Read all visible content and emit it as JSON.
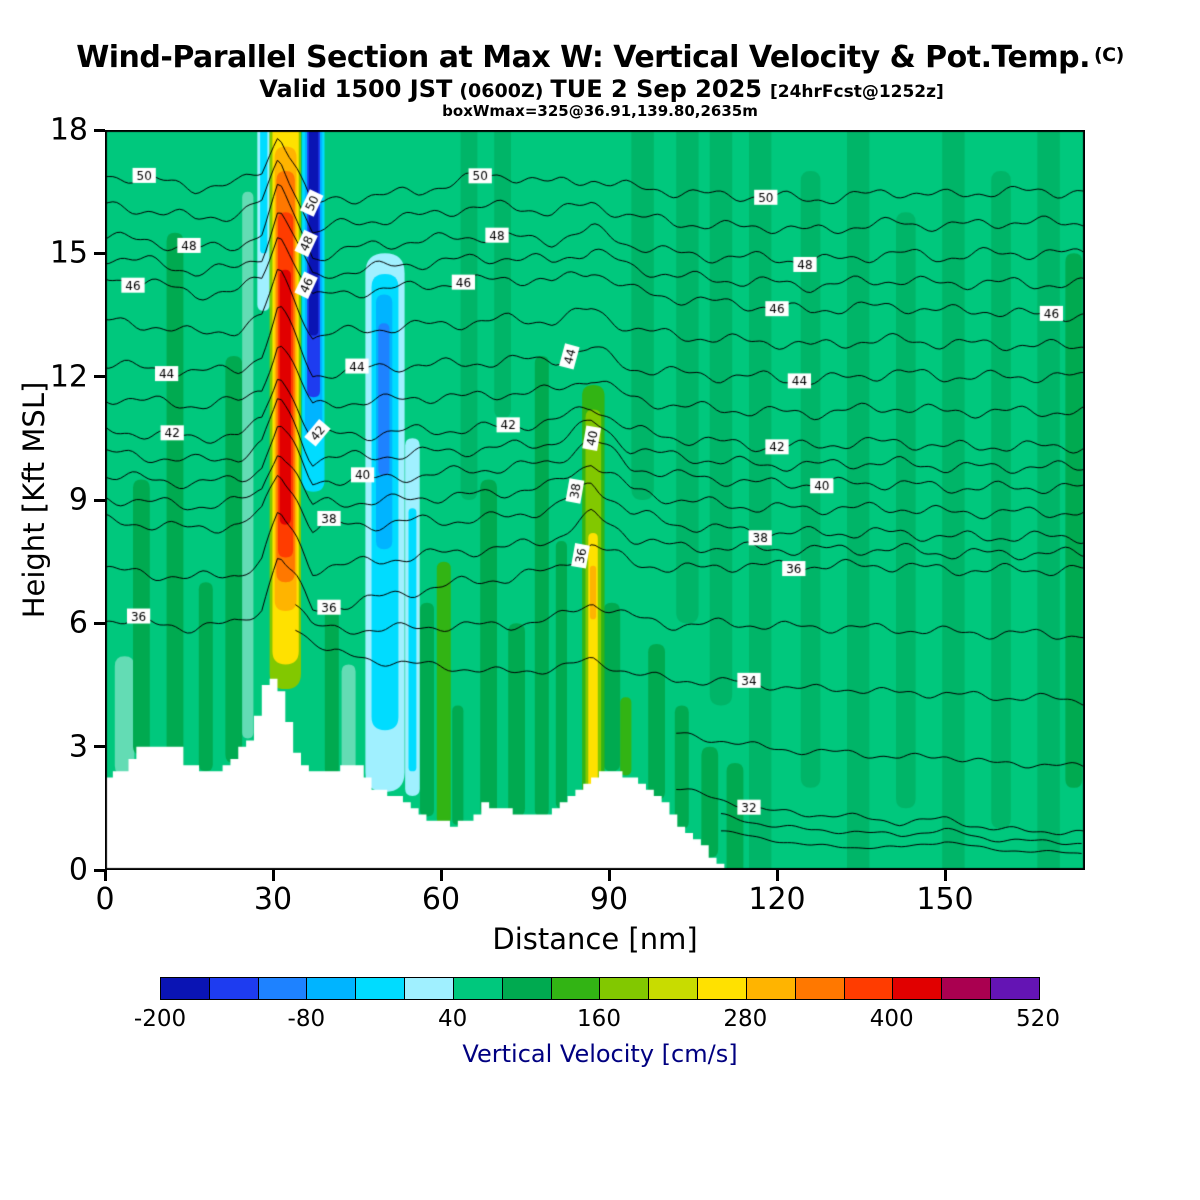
{
  "header": {
    "title": "Wind-Parallel Section at Max W: Vertical Velocity & Pot.Temp.",
    "title_suffix": "(C)",
    "valid_prefix": "Valid 1500 JST",
    "valid_zulu": "(0600Z)",
    "valid_date": "TUE 2 Sep 2025",
    "fcst_tag": "[24hrFcst@1252z]",
    "box_info": "boxWmax=325@36.91,139.80,2635m"
  },
  "chart_data": {
    "type": "heatmap",
    "subtype": "vertical-cross-section-contour",
    "title": "Wind-Parallel Section at Max W: Vertical Velocity & Pot.Temp. (C)",
    "subtitle": "Valid 1500 JST (0600Z) TUE 2 Sep 2025 [24hrFcst@1252z]",
    "annotation": "boxWmax=325@36.91,139.80,2635m",
    "xlabel": "Distance [nm]",
    "ylabel": "Height [Kft MSL]",
    "xlim": [
      0,
      175
    ],
    "ylim": [
      0,
      18
    ],
    "xticks": [
      0,
      30,
      60,
      90,
      120,
      150
    ],
    "yticks": [
      0,
      3,
      6,
      9,
      12,
      15,
      18
    ],
    "background_color": "#00c87d",
    "colorbar": {
      "label": "Vertical Velocity [cm/s]",
      "min": -200,
      "max": 520,
      "step": 40,
      "tick_labels": [
        -200,
        -80,
        40,
        160,
        280,
        400,
        520
      ],
      "colors": [
        "#0a14b4",
        "#1e3cf0",
        "#1e82ff",
        "#00b4ff",
        "#00dcff",
        "#a0f0ff",
        "#00c87d",
        "#00aa50",
        "#32b414",
        "#82c800",
        "#c8dc00",
        "#ffe100",
        "#ffb400",
        "#ff7800",
        "#ff3c00",
        "#e10000",
        "#aa0050",
        "#6414b4"
      ],
      "label_color": "#000080"
    },
    "stripes": [
      [
        3.5,
        3.5,
        2.3,
        5.2,
        "#63dcb4"
      ],
      [
        6.5,
        3,
        2.8,
        9.5,
        "#00aa50"
      ],
      [
        12.5,
        3,
        2.4,
        15.5,
        "#00aa50"
      ],
      [
        18,
        2.5,
        2.4,
        7,
        "#00aa50"
      ],
      [
        23,
        3,
        2.6,
        12.5,
        "#00aa50"
      ],
      [
        25.5,
        2,
        3.2,
        16.5,
        "#63dcb4"
      ],
      [
        40.5,
        2.5,
        2.3,
        6.5,
        "#00aa50"
      ],
      [
        43.5,
        2.5,
        2.4,
        5,
        "#63dcb4"
      ],
      [
        57.5,
        2.5,
        1.3,
        6.5,
        "#00aa50"
      ],
      [
        60.5,
        2.5,
        1.1,
        7.5,
        "#32b414"
      ],
      [
        63,
        2,
        1.1,
        4,
        "#00aa50"
      ],
      [
        65,
        3,
        9,
        18,
        "#00b568"
      ],
      [
        68.5,
        3,
        1.3,
        9.5,
        "#00aa50"
      ],
      [
        71,
        3,
        11,
        18,
        "#00b568"
      ],
      [
        73.5,
        3,
        1.3,
        6,
        "#00aa50"
      ],
      [
        78,
        2.5,
        1.3,
        12.5,
        "#00aa50"
      ],
      [
        81.5,
        2,
        1.5,
        8,
        "#00aa50"
      ],
      [
        90.5,
        3,
        2.4,
        6.5,
        "#00aa50"
      ],
      [
        93,
        2,
        2.3,
        4.2,
        "#32b414"
      ],
      [
        96,
        4,
        9,
        18,
        "#00b568"
      ],
      [
        98.5,
        3,
        1.7,
        5.5,
        "#00aa50"
      ],
      [
        103,
        2.5,
        1.0,
        4,
        "#00aa50"
      ],
      [
        104,
        4,
        6,
        18,
        "#00b568"
      ],
      [
        108,
        3,
        0.3,
        3,
        "#00aa50"
      ],
      [
        110,
        4,
        4,
        18,
        "#00b568"
      ],
      [
        112.5,
        3,
        0,
        2.6,
        "#00aa50"
      ],
      [
        117,
        4,
        0,
        18,
        "#00b568"
      ],
      [
        126,
        3.5,
        2,
        17,
        "#00b568"
      ],
      [
        134.5,
        4,
        0,
        18,
        "#00b568"
      ],
      [
        143,
        3.5,
        1.5,
        16,
        "#00b568"
      ],
      [
        151.5,
        4,
        0,
        18,
        "#00b568"
      ],
      [
        160,
        3.5,
        1,
        17,
        "#00b568"
      ],
      [
        168.5,
        4,
        0,
        18,
        "#00b568"
      ],
      [
        173,
        3,
        2,
        15,
        "#00aa50"
      ]
    ],
    "features": [
      [
        27.2,
        29.4,
        13.6,
        18,
        "#a0f0ff"
      ],
      [
        27.7,
        29.0,
        15.0,
        18,
        "#00dcff"
      ],
      [
        29.4,
        35.0,
        4.4,
        18,
        "#82c800"
      ],
      [
        29.9,
        34.6,
        5.0,
        18,
        "#ffe100"
      ],
      [
        30.3,
        34.2,
        6.3,
        17.6,
        "#ffb400"
      ],
      [
        30.6,
        33.9,
        7.0,
        17.0,
        "#ff7800"
      ],
      [
        30.9,
        33.6,
        7.6,
        16.0,
        "#ff3c00"
      ],
      [
        31.2,
        33.2,
        8.4,
        14.6,
        "#e10000"
      ],
      [
        35.2,
        39.2,
        9.2,
        18,
        "#00dcff"
      ],
      [
        35.7,
        38.8,
        10.5,
        18,
        "#00b4ff"
      ],
      [
        36.1,
        38.4,
        11.5,
        18,
        "#1e3cf0"
      ],
      [
        36.4,
        38.1,
        13.0,
        18,
        "#0a14b4"
      ],
      [
        46.5,
        53.5,
        1.9,
        15.0,
        "#a0f0ff"
      ],
      [
        47.6,
        52.4,
        3.4,
        14.5,
        "#00dcff"
      ],
      [
        48.4,
        51.3,
        7.8,
        14.0,
        "#00b4ff"
      ],
      [
        48.8,
        50.8,
        9.6,
        13.3,
        "#1e82ff"
      ],
      [
        53.6,
        56.2,
        1.8,
        10.5,
        "#a0f0ff"
      ],
      [
        54.2,
        55.6,
        2.4,
        8.8,
        "#00dcff"
      ],
      [
        85.2,
        89.2,
        1.4,
        11.8,
        "#32b414"
      ],
      [
        85.8,
        88.6,
        1.7,
        11.2,
        "#82c800"
      ],
      [
        86.3,
        88.0,
        2.0,
        8.2,
        "#ffe100"
      ],
      [
        86.6,
        87.7,
        6.1,
        7.4,
        "#ffb400"
      ]
    ],
    "terrain": [
      [
        0,
        2.3
      ],
      [
        4,
        2.4
      ],
      [
        6,
        3.0
      ],
      [
        13,
        3.0
      ],
      [
        15,
        2.5
      ],
      [
        20,
        2.4
      ],
      [
        23,
        2.7
      ],
      [
        26,
        3.2
      ],
      [
        28,
        4.1
      ],
      [
        29,
        4.6
      ],
      [
        31,
        4.6
      ],
      [
        32,
        4.2
      ],
      [
        33,
        3.5
      ],
      [
        34,
        2.9
      ],
      [
        36,
        2.5
      ],
      [
        39,
        2.3
      ],
      [
        43,
        2.5
      ],
      [
        45,
        2.7
      ],
      [
        47,
        2.2
      ],
      [
        49,
        1.9
      ],
      [
        53,
        1.8
      ],
      [
        55,
        1.5
      ],
      [
        58,
        1.2
      ],
      [
        62,
        1.1
      ],
      [
        66,
        1.3
      ],
      [
        68,
        1.6
      ],
      [
        72,
        1.5
      ],
      [
        74,
        1.3
      ],
      [
        80,
        1.4
      ],
      [
        82,
        1.7
      ],
      [
        85,
        2.0
      ],
      [
        88,
        2.3
      ],
      [
        90,
        2.4
      ],
      [
        94,
        2.3
      ],
      [
        97,
        2.0
      ],
      [
        100,
        1.6
      ],
      [
        103,
        1.1
      ],
      [
        106,
        0.7
      ],
      [
        108,
        0.4
      ],
      [
        110,
        0.1
      ],
      [
        111,
        0
      ],
      [
        175,
        0
      ]
    ],
    "contours": {
      "units": "C",
      "grid_x": [
        0,
        8,
        16,
        24,
        28,
        31,
        34,
        37,
        40,
        48,
        56,
        64,
        72,
        80,
        87,
        94,
        102,
        110,
        118,
        126,
        134,
        142,
        150,
        158,
        166,
        175
      ],
      "levels": [
        {
          "level": 50,
          "h": [
            16.9,
            16.8,
            16.6,
            16.7,
            17.0,
            17.9,
            17.2,
            16.1,
            16.3,
            16.4,
            16.5,
            16.8,
            16.9,
            16.7,
            16.8,
            16.6,
            16.5,
            16.4,
            16.4,
            16.3,
            16.4,
            16.5,
            16.4,
            16.5,
            16.5,
            16.5
          ],
          "labels": [
            [
              7,
              0
            ],
            [
              37,
              -65
            ],
            [
              67,
              0
            ],
            [
              118,
              0
            ]
          ]
        },
        {
          "level": 48,
          "h": [
            15.4,
            15.3,
            15.1,
            15.2,
            15.5,
            16.6,
            15.9,
            14.9,
            15.0,
            15.2,
            15.3,
            15.4,
            15.4,
            15.3,
            15.6,
            15.2,
            15.0,
            14.9,
            14.9,
            14.8,
            14.9,
            15.0,
            14.9,
            15.0,
            15.0,
            15.0
          ],
          "labels": [
            [
              15,
              0
            ],
            [
              36,
              -65
            ],
            [
              70,
              0
            ],
            [
              125,
              0
            ]
          ]
        },
        {
          "level": 46,
          "h": [
            14.4,
            14.3,
            14.0,
            14.1,
            14.4,
            15.5,
            14.8,
            13.9,
            14.0,
            14.1,
            14.2,
            14.3,
            14.4,
            14.3,
            14.6,
            14.1,
            13.9,
            13.8,
            13.7,
            13.6,
            13.7,
            13.7,
            13.6,
            13.6,
            13.5,
            13.5
          ],
          "labels": [
            [
              5,
              0
            ],
            [
              36,
              -65
            ],
            [
              64,
              0
            ],
            [
              120,
              0
            ],
            [
              169,
              0
            ]
          ]
        },
        {
          "level": 44,
          "h": [
            12.3,
            12.2,
            12.1,
            12.2,
            12.5,
            13.7,
            13.0,
            12.0,
            12.1,
            12.2,
            12.3,
            12.3,
            12.4,
            12.4,
            12.7,
            12.2,
            12.1,
            12.0,
            12.0,
            11.9,
            12.0,
            12.1,
            12.0,
            12.0,
            12.0,
            12.0
          ],
          "labels": [
            [
              11,
              0
            ],
            [
              45,
              0
            ],
            [
              83,
              -75
            ],
            [
              124,
              0
            ]
          ]
        },
        {
          "level": 42,
          "h": [
            10.7,
            10.6,
            10.5,
            10.6,
            10.9,
            12.1,
            11.4,
            10.5,
            10.6,
            10.6,
            10.7,
            10.7,
            10.8,
            10.9,
            11.3,
            10.7,
            10.5,
            10.4,
            10.3,
            10.3,
            10.4,
            10.4,
            10.3,
            10.3,
            10.3,
            10.3
          ],
          "labels": [
            [
              12,
              0
            ],
            [
              38,
              -50
            ],
            [
              72,
              0
            ],
            [
              120,
              0
            ]
          ]
        },
        {
          "level": 40,
          "h": [
            9.6,
            9.5,
            9.4,
            9.5,
            9.8,
            10.9,
            10.2,
            9.4,
            9.5,
            9.5,
            9.6,
            9.7,
            9.8,
            9.9,
            10.5,
            9.8,
            9.6,
            9.5,
            9.4,
            9.4,
            9.4,
            9.4,
            9.3,
            9.3,
            9.3,
            9.3
          ],
          "labels": [
            [
              46,
              0
            ],
            [
              87,
              -80
            ],
            [
              128,
              0
            ]
          ]
        },
        {
          "level": 38,
          "h": [
            8.5,
            8.4,
            8.3,
            8.4,
            8.7,
            9.7,
            9.1,
            8.3,
            8.4,
            8.4,
            8.5,
            8.5,
            8.6,
            8.8,
            9.4,
            8.7,
            8.4,
            8.3,
            8.2,
            8.2,
            8.2,
            8.2,
            8.1,
            8.1,
            8.1,
            8.1
          ],
          "labels": [
            [
              40,
              0
            ],
            [
              84,
              -80
            ],
            [
              117,
              0
            ]
          ]
        },
        {
          "level": 36,
          "h": [
            6.1,
            6.0,
            5.9,
            6.0,
            6.4,
            7.7,
            7.1,
            6.3,
            6.4,
            6.6,
            6.8,
            7.0,
            7.1,
            7.3,
            7.9,
            7.5,
            7.3,
            7.4,
            7.4,
            7.4,
            7.4,
            7.4,
            7.3,
            7.3,
            7.3,
            7.3
          ],
          "labels": [
            [
              6,
              0
            ],
            [
              40,
              0
            ],
            [
              85,
              -80
            ],
            [
              123,
              0
            ]
          ]
        },
        {
          "level": 34,
          "h": [
            null,
            null,
            null,
            null,
            null,
            null,
            5.9,
            5.6,
            5.3,
            5.1,
            5.0,
            4.9,
            4.8,
            4.9,
            5.1,
            4.8,
            4.6,
            4.6,
            4.5,
            4.4,
            4.4,
            4.3,
            4.3,
            4.2,
            4.2,
            4.1
          ],
          "labels": [
            [
              115,
              0
            ]
          ]
        },
        {
          "level": 32,
          "h": [
            null,
            null,
            null,
            null,
            null,
            null,
            null,
            null,
            null,
            null,
            null,
            null,
            null,
            null,
            null,
            null,
            2.0,
            1.7,
            1.45,
            1.35,
            1.3,
            1.15,
            1.25,
            1.0,
            0.95,
            0.9
          ],
          "labels": [
            [
              115,
              0
            ]
          ]
        },
        {
          "level": 30,
          "h": [
            null,
            null,
            null,
            null,
            null,
            null,
            null,
            null,
            null,
            null,
            null,
            null,
            null,
            null,
            null,
            null,
            null,
            0.95,
            0.75,
            0.6,
            0.55,
            0.55,
            0.7,
            0.5,
            0.45,
            0.4
          ],
          "labels": []
        }
      ]
    }
  }
}
